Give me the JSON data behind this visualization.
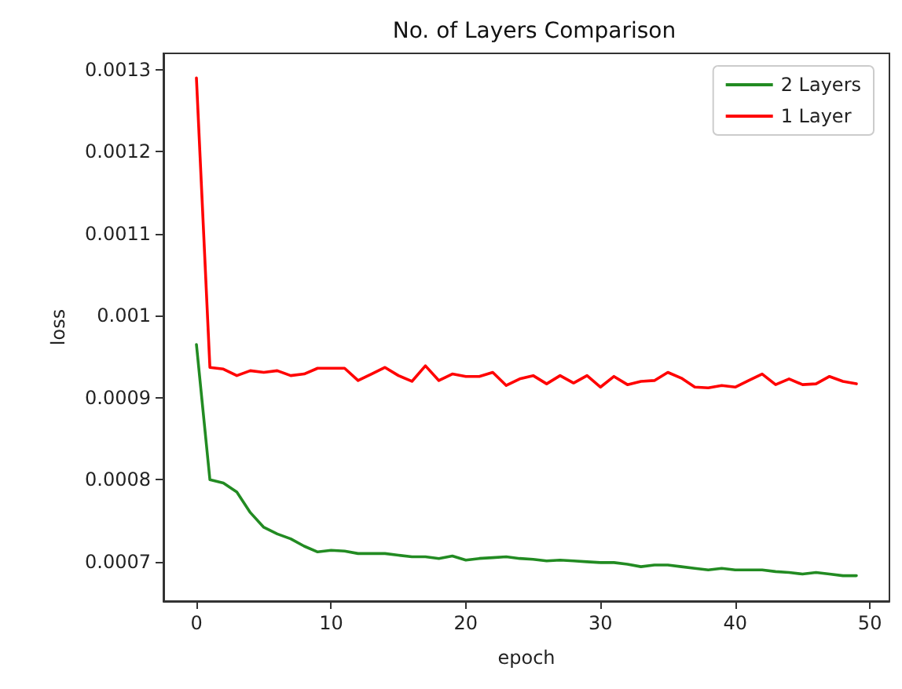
{
  "chart_data": {
    "type": "line",
    "title": "No. of Layers Comparison",
    "xlabel": "epoch",
    "ylabel": "loss",
    "x": [
      0,
      1,
      2,
      3,
      4,
      5,
      6,
      7,
      8,
      9,
      10,
      11,
      12,
      13,
      14,
      15,
      16,
      17,
      18,
      19,
      20,
      21,
      22,
      23,
      24,
      25,
      26,
      27,
      28,
      29,
      30,
      31,
      32,
      33,
      34,
      35,
      36,
      37,
      38,
      39,
      40,
      41,
      42,
      43,
      44,
      45,
      46,
      47,
      48,
      49
    ],
    "series": [
      {
        "name": "2 Layers",
        "color": "#228b22",
        "values": [
          0.000965,
          0.0008,
          0.000796,
          0.000785,
          0.00076,
          0.000742,
          0.000734,
          0.000728,
          0.000719,
          0.000712,
          0.000714,
          0.000713,
          0.00071,
          0.00071,
          0.00071,
          0.000708,
          0.000706,
          0.000706,
          0.000704,
          0.000707,
          0.000702,
          0.000704,
          0.000705,
          0.000706,
          0.000704,
          0.000703,
          0.000701,
          0.000702,
          0.000701,
          0.0007,
          0.000699,
          0.000699,
          0.000697,
          0.000694,
          0.000696,
          0.000696,
          0.000694,
          0.000692,
          0.00069,
          0.000692,
          0.00069,
          0.00069,
          0.00069,
          0.000688,
          0.000687,
          0.000685,
          0.000687,
          0.000685,
          0.000683,
          0.000683
        ]
      },
      {
        "name": "1 Layer",
        "color": "#ff0000",
        "values": [
          0.00129,
          0.000937,
          0.000935,
          0.000927,
          0.000933,
          0.000931,
          0.000933,
          0.000927,
          0.000929,
          0.000936,
          0.000936,
          0.000936,
          0.000921,
          0.000929,
          0.000937,
          0.000927,
          0.00092,
          0.000939,
          0.000921,
          0.000929,
          0.000926,
          0.000926,
          0.000931,
          0.000915,
          0.000923,
          0.000927,
          0.000917,
          0.000927,
          0.000918,
          0.000927,
          0.000913,
          0.000926,
          0.000916,
          0.00092,
          0.000921,
          0.000931,
          0.000924,
          0.000913,
          0.000912,
          0.000915,
          0.000913,
          0.000921,
          0.000929,
          0.000916,
          0.000923,
          0.000916,
          0.000917,
          0.000926,
          0.00092,
          0.000917
        ]
      }
    ],
    "xlim": [
      -2.45,
      51.45
    ],
    "xticks": [
      0,
      10,
      20,
      30,
      40,
      50
    ],
    "ylim": [
      0.000652,
      0.00132
    ],
    "yticks": [
      0.0007,
      0.0008,
      0.0009,
      0.001,
      0.0011,
      0.0012,
      0.0013
    ],
    "grid": false,
    "legend": "top right",
    "marker": "none",
    "line_style": "solid"
  }
}
